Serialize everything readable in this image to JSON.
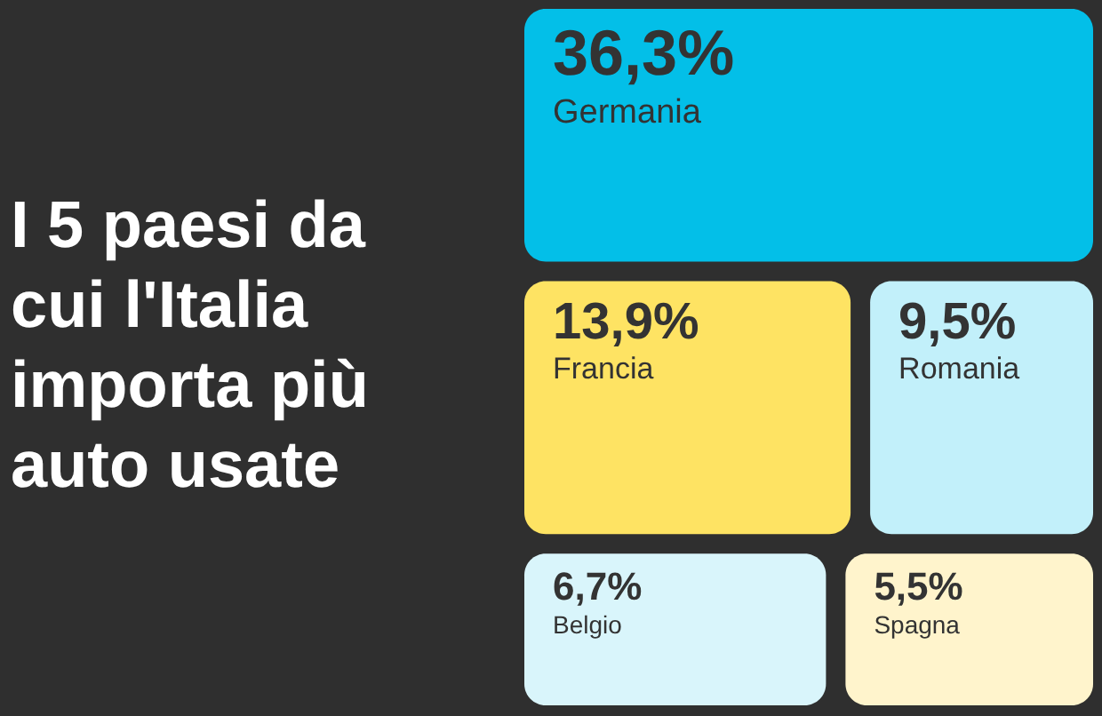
{
  "chart_data": {
    "type": "other",
    "title": "I 5 paesi da cui l'Italia importa più auto usate",
    "categories": [
      "Germania",
      "Francia",
      "Romania",
      "Belgio",
      "Spagna"
    ],
    "values": [
      36.3,
      13.9,
      9.5,
      6.7,
      5.5
    ],
    "value_labels": [
      "36,3%",
      "13,9%",
      "9,5%",
      "6,7%",
      "5,5%"
    ],
    "colors": [
      "#03bfe8",
      "#fee363",
      "#c2f0fa",
      "#d9f5fb",
      "#fff4cc"
    ]
  }
}
